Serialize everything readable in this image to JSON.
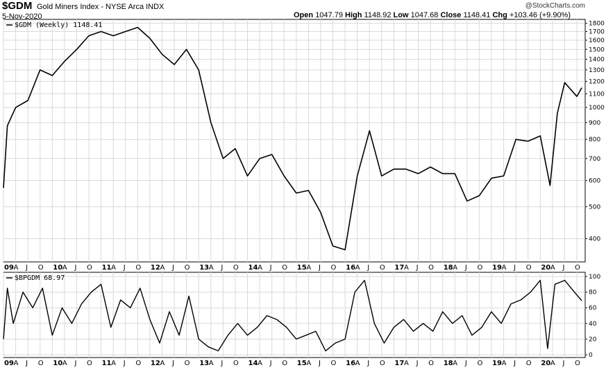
{
  "header": {
    "symbol": "$GDM",
    "name": "Gold Miners Index - NYSE Arca INDX",
    "date": "5-Nov-2020",
    "credit": "@StockCharts.com",
    "open_label": "Open",
    "open": "1047.79",
    "high_label": "High",
    "high": "1148.92",
    "low_label": "Low",
    "low": "1047.68",
    "close_label": "Close",
    "close": "1148.41",
    "chg_label": "Chg",
    "chg": "+103.46 (+9.90%)"
  },
  "chart_data": [
    {
      "type": "line",
      "panel": "price",
      "legend": "$GDM (Weekly) 1148.41",
      "scale": "log",
      "ylim": [
        340,
        1850
      ],
      "yticks": [
        400,
        500,
        600,
        700,
        800,
        900,
        1000,
        1100,
        1200,
        1300,
        1400,
        1500,
        1600,
        1700,
        1800
      ],
      "x": [
        2009.0,
        2009.08,
        2009.25,
        2009.5,
        2009.75,
        2010.0,
        2010.25,
        2010.5,
        2010.75,
        2011.0,
        2011.25,
        2011.5,
        2011.75,
        2012.0,
        2012.25,
        2012.5,
        2012.75,
        2013.0,
        2013.25,
        2013.5,
        2013.75,
        2014.0,
        2014.25,
        2014.5,
        2014.75,
        2015.0,
        2015.25,
        2015.5,
        2015.75,
        2016.0,
        2016.25,
        2016.5,
        2016.75,
        2017.0,
        2017.25,
        2017.5,
        2017.75,
        2018.0,
        2018.25,
        2018.5,
        2018.75,
        2019.0,
        2019.25,
        2019.5,
        2019.75,
        2020.0,
        2020.2,
        2020.35,
        2020.5,
        2020.75,
        2020.85
      ],
      "values": [
        570,
        880,
        1000,
        1050,
        1300,
        1250,
        1380,
        1500,
        1650,
        1700,
        1650,
        1700,
        1750,
        1620,
        1450,
        1350,
        1500,
        1300,
        900,
        700,
        750,
        620,
        700,
        720,
        620,
        550,
        560,
        480,
        380,
        370,
        620,
        850,
        620,
        650,
        650,
        630,
        660,
        630,
        630,
        520,
        540,
        610,
        620,
        800,
        790,
        820,
        580,
        960,
        1190,
        1080,
        1148
      ]
    },
    {
      "type": "line",
      "panel": "indicator",
      "legend": "$BPGDM 68.97",
      "ylim": [
        0,
        100
      ],
      "yticks": [
        0,
        20,
        40,
        60,
        80,
        100
      ],
      "x": [
        2009.0,
        2009.08,
        2009.2,
        2009.4,
        2009.6,
        2009.8,
        2010.0,
        2010.2,
        2010.4,
        2010.6,
        2010.8,
        2011.0,
        2011.2,
        2011.4,
        2011.6,
        2011.8,
        2012.0,
        2012.2,
        2012.4,
        2012.6,
        2012.8,
        2013.0,
        2013.2,
        2013.4,
        2013.6,
        2013.8,
        2014.0,
        2014.2,
        2014.4,
        2014.6,
        2014.8,
        2015.0,
        2015.2,
        2015.4,
        2015.6,
        2015.8,
        2016.0,
        2016.2,
        2016.4,
        2016.6,
        2016.8,
        2017.0,
        2017.2,
        2017.4,
        2017.6,
        2017.8,
        2018.0,
        2018.2,
        2018.4,
        2018.6,
        2018.8,
        2019.0,
        2019.2,
        2019.4,
        2019.6,
        2019.8,
        2020.0,
        2020.15,
        2020.3,
        2020.5,
        2020.7,
        2020.85
      ],
      "values": [
        20,
        85,
        40,
        80,
        60,
        85,
        25,
        60,
        40,
        65,
        80,
        90,
        35,
        70,
        60,
        85,
        45,
        15,
        55,
        25,
        75,
        20,
        10,
        5,
        25,
        40,
        25,
        35,
        50,
        45,
        35,
        20,
        25,
        30,
        5,
        15,
        20,
        80,
        95,
        40,
        15,
        35,
        45,
        30,
        40,
        30,
        55,
        40,
        50,
        25,
        35,
        55,
        40,
        65,
        70,
        80,
        95,
        8,
        90,
        95,
        80,
        69
      ]
    }
  ],
  "x_axis": {
    "labels": [
      {
        "t": 2009.0,
        "text": "09",
        "year": true
      },
      {
        "t": 2009.25,
        "text": "A",
        "year": false
      },
      {
        "t": 2009.5,
        "text": "J",
        "year": false
      },
      {
        "t": 2009.75,
        "text": "O",
        "year": false
      },
      {
        "t": 2010.0,
        "text": "10",
        "year": true
      },
      {
        "t": 2010.25,
        "text": "A",
        "year": false
      },
      {
        "t": 2010.5,
        "text": "J",
        "year": false
      },
      {
        "t": 2010.75,
        "text": "O",
        "year": false
      },
      {
        "t": 2011.0,
        "text": "11",
        "year": true
      },
      {
        "t": 2011.25,
        "text": "A",
        "year": false
      },
      {
        "t": 2011.5,
        "text": "J",
        "year": false
      },
      {
        "t": 2011.75,
        "text": "O",
        "year": false
      },
      {
        "t": 2012.0,
        "text": "12",
        "year": true
      },
      {
        "t": 2012.25,
        "text": "A",
        "year": false
      },
      {
        "t": 2012.5,
        "text": "J",
        "year": false
      },
      {
        "t": 2012.75,
        "text": "O",
        "year": false
      },
      {
        "t": 2013.0,
        "text": "13",
        "year": true
      },
      {
        "t": 2013.25,
        "text": "A",
        "year": false
      },
      {
        "t": 2013.5,
        "text": "J",
        "year": false
      },
      {
        "t": 2013.75,
        "text": "O",
        "year": false
      },
      {
        "t": 2014.0,
        "text": "14",
        "year": true
      },
      {
        "t": 2014.25,
        "text": "A",
        "year": false
      },
      {
        "t": 2014.5,
        "text": "J",
        "year": false
      },
      {
        "t": 2014.75,
        "text": "O",
        "year": false
      },
      {
        "t": 2015.0,
        "text": "15",
        "year": true
      },
      {
        "t": 2015.25,
        "text": "A",
        "year": false
      },
      {
        "t": 2015.5,
        "text": "J",
        "year": false
      },
      {
        "t": 2015.75,
        "text": "O",
        "year": false
      },
      {
        "t": 2016.0,
        "text": "16",
        "year": true
      },
      {
        "t": 2016.25,
        "text": "A",
        "year": false
      },
      {
        "t": 2016.5,
        "text": "J",
        "year": false
      },
      {
        "t": 2016.75,
        "text": "O",
        "year": false
      },
      {
        "t": 2017.0,
        "text": "17",
        "year": true
      },
      {
        "t": 2017.25,
        "text": "A",
        "year": false
      },
      {
        "t": 2017.5,
        "text": "J",
        "year": false
      },
      {
        "t": 2017.75,
        "text": "O",
        "year": false
      },
      {
        "t": 2018.0,
        "text": "18",
        "year": true
      },
      {
        "t": 2018.25,
        "text": "A",
        "year": false
      },
      {
        "t": 2018.5,
        "text": "J",
        "year": false
      },
      {
        "t": 2018.75,
        "text": "O",
        "year": false
      },
      {
        "t": 2019.0,
        "text": "19",
        "year": true
      },
      {
        "t": 2019.25,
        "text": "A",
        "year": false
      },
      {
        "t": 2019.5,
        "text": "J",
        "year": false
      },
      {
        "t": 2019.75,
        "text": "O",
        "year": false
      },
      {
        "t": 2020.0,
        "text": "20",
        "year": true
      },
      {
        "t": 2020.25,
        "text": "A",
        "year": false
      },
      {
        "t": 2020.5,
        "text": "J",
        "year": false
      },
      {
        "t": 2020.75,
        "text": "O",
        "year": false
      }
    ],
    "start": 2009.0,
    "end": 2020.92
  },
  "colors": {
    "line": "#000000",
    "grid": "#d9d9d9",
    "frame": "#000000"
  }
}
